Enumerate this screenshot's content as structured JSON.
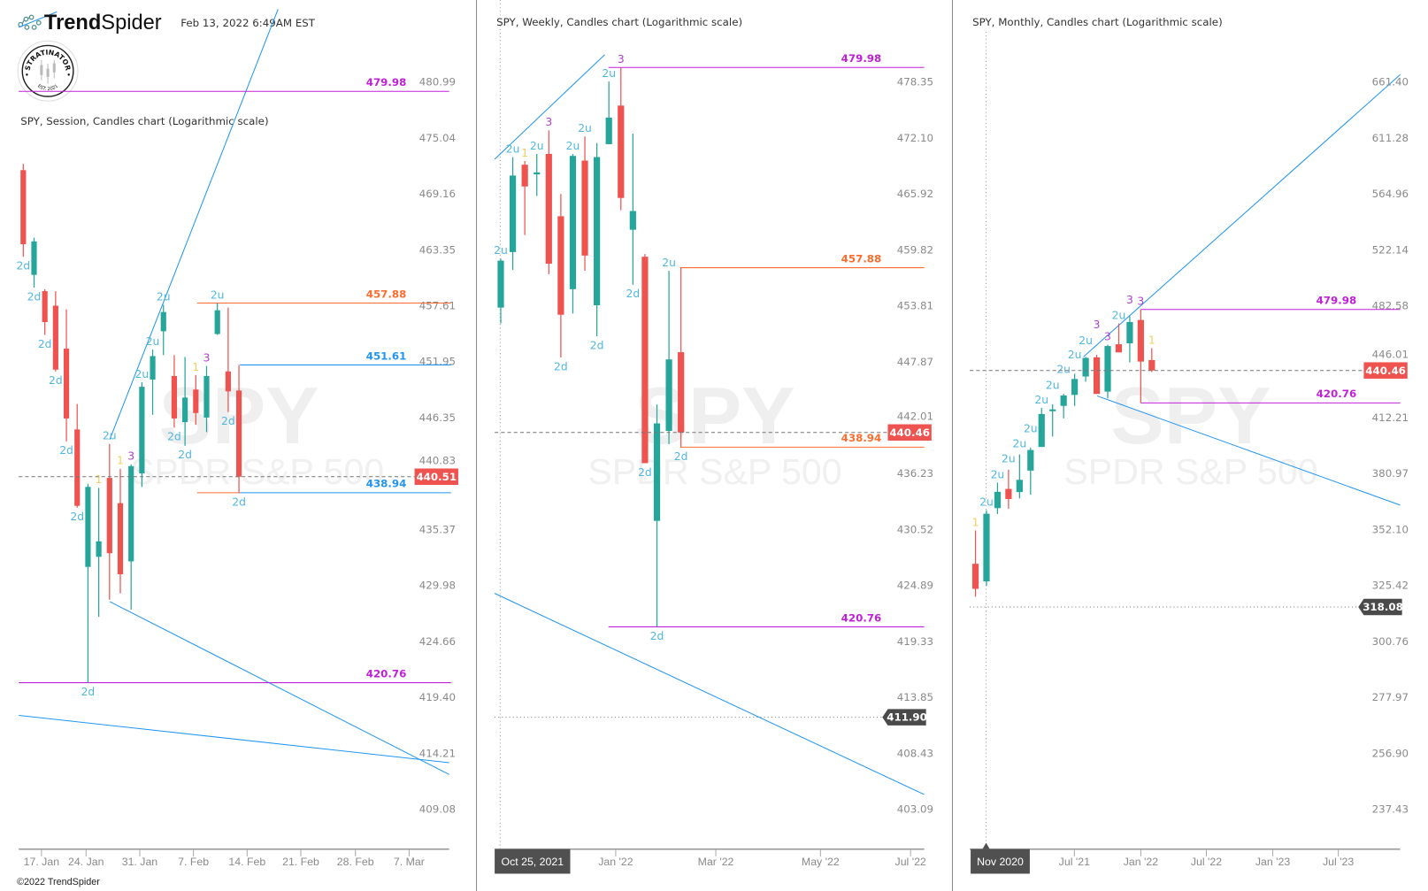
{
  "app": {
    "brand_bold": "Trend",
    "brand_light": "Spider",
    "timestamp": "Feb 13, 2022 6:49AM EST",
    "copyright": "©2022 TrendSpider",
    "badge": {
      "top": "STRATINATOR",
      "bottom": "EST. 2021"
    }
  },
  "colors": {
    "up": "#26a69a",
    "down": "#ef5350",
    "label_2": "#4fb8e0",
    "label_1": "#f2d15c",
    "label_3": "#b040d0",
    "magenta": "#c020d8",
    "orange": "#ff6d2e",
    "blue": "#2196f3",
    "trendline": "#2196f3",
    "price_tag": "#ef5350",
    "crosshair_tag": "#4a4a4a"
  },
  "watermark": {
    "symbol": "SPY",
    "name": "SPDR S&P 500"
  },
  "panels": [
    {
      "title": "SPY, Session, Candles chart (Logarithmic scale)",
      "yticks": [
        "480.99",
        "475.04",
        "469.16",
        "463.35",
        "457.61",
        "451.95",
        "446.35",
        "440.83",
        "435.37",
        "429.98",
        "424.66",
        "419.40",
        "414.21",
        "409.08"
      ],
      "candles": [
        {
          "o": 471.63,
          "h": 472.29,
          "l": 462.61,
          "c": 463.92,
          "label": "2d"
        },
        {
          "o": 460.76,
          "h": 464.59,
          "l": 459.46,
          "c": 464.21,
          "label": "2d"
        },
        {
          "o": 459.09,
          "h": 459.28,
          "l": 454.64,
          "c": 455.94,
          "label": "2d"
        },
        {
          "o": 457.61,
          "h": 459.09,
          "l": 450.96,
          "c": 451.14,
          "label": "2d"
        },
        {
          "o": 453.25,
          "h": 457.24,
          "l": 443.99,
          "c": 446.26,
          "label": "2d"
        },
        {
          "o": 445.17,
          "h": 447.7,
          "l": 437.48,
          "c": 437.66,
          "label": "2d"
        },
        {
          "o": 431.75,
          "h": 439.8,
          "l": 420.76,
          "c": 439.51,
          "label": "2d"
        },
        {
          "o": 432.72,
          "h": 439.42,
          "l": 426.98,
          "c": 434.22,
          "label": "1"
        },
        {
          "o": 440.39,
          "h": 443.73,
          "l": 428.61,
          "c": 433.07,
          "label": "2u"
        },
        {
          "o": 437.92,
          "h": 441.28,
          "l": 429.21,
          "c": 431.04,
          "label": "1"
        },
        {
          "o": 432.28,
          "h": 441.73,
          "l": 427.66,
          "c": 441.55,
          "label": "3"
        },
        {
          "o": 440.83,
          "h": 449.87,
          "l": 439.51,
          "c": 449.42,
          "label": "2u"
        },
        {
          "o": 450.14,
          "h": 453.16,
          "l": 446.62,
          "c": 452.5,
          "label": "2u"
        },
        {
          "o": 455.01,
          "h": 457.7,
          "l": 452.6,
          "c": 456.96,
          "label": "2u"
        },
        {
          "o": 450.5,
          "h": 452.6,
          "l": 445.35,
          "c": 446.26,
          "label": "2d"
        },
        {
          "o": 445.9,
          "h": 452.41,
          "l": 443.55,
          "c": 448.34,
          "label": "2d"
        },
        {
          "o": 449.14,
          "h": 450.59,
          "l": 445.63,
          "c": 446.8,
          "label": "1"
        },
        {
          "o": 446.35,
          "h": 451.5,
          "l": 444.9,
          "c": 450.5,
          "label": "3"
        },
        {
          "o": 454.73,
          "h": 457.88,
          "l": 454.64,
          "c": 457.14,
          "label": "2u"
        },
        {
          "o": 450.96,
          "h": 457.42,
          "l": 446.89,
          "c": 448.96,
          "label": "2d"
        },
        {
          "o": 449.05,
          "h": 451.61,
          "l": 438.94,
          "c": 440.51,
          "label": "2d"
        }
      ],
      "levels": [
        {
          "value": 479.98,
          "label": "479.98",
          "color": "#c020d8"
        },
        {
          "value": 457.88,
          "label": "457.88",
          "color": "#ff6d2e"
        },
        {
          "value": 451.61,
          "label": "451.61",
          "color": "#2196f3"
        },
        {
          "value": 438.94,
          "label": "438.94",
          "color": "#2196f3",
          "origin_color": "#ff6d2e"
        },
        {
          "value": 420.76,
          "label": "420.76",
          "color": "#c020d8"
        }
      ],
      "last_price": {
        "value": 440.51,
        "label": "440.51"
      },
      "crosshair": null,
      "xaxis": {
        "highlight": null,
        "labels": [
          "17. Jan",
          "24. Jan",
          "31. Jan",
          "7. Feb",
          "14. Feb",
          "21. Feb",
          "28. Feb",
          "7. Mar"
        ]
      }
    },
    {
      "title": "SPY, Weekly, Candles chart (Logarithmic scale)",
      "yticks": [
        "478.35",
        "472.10",
        "465.92",
        "459.82",
        "453.81",
        "447.87",
        "442.01",
        "436.23",
        "430.52",
        "424.89",
        "419.33",
        "413.85",
        "408.43",
        "403.09"
      ],
      "candles": [
        {
          "o": 453.6,
          "h": 458.85,
          "l": 451.9,
          "c": 458.64,
          "label": "2u"
        },
        {
          "o": 459.57,
          "h": 469.96,
          "l": 457.63,
          "c": 467.92,
          "label": "2u"
        },
        {
          "o": 469.11,
          "h": 469.53,
          "l": 461.42,
          "c": 466.72,
          "label": "1"
        },
        {
          "o": 468.05,
          "h": 470.31,
          "l": 465.68,
          "c": 468.27,
          "label": "2u"
        },
        {
          "o": 470.31,
          "h": 472.92,
          "l": 457.18,
          "c": 458.31,
          "label": "3"
        },
        {
          "o": 463.46,
          "h": 465.89,
          "l": 448.31,
          "c": 452.84,
          "label": "2d"
        },
        {
          "o": 455.57,
          "h": 470.31,
          "l": 452.96,
          "c": 470.09,
          "label": "2u"
        },
        {
          "o": 469.57,
          "h": 472.25,
          "l": 457.55,
          "c": 459.19,
          "label": "2u"
        },
        {
          "o": 453.85,
          "h": 471.52,
          "l": 450.55,
          "c": 469.96,
          "label": "2d"
        },
        {
          "o": 471.39,
          "h": 478.39,
          "l": 471.39,
          "c": 474.35,
          "label": "2u"
        },
        {
          "o": 475.69,
          "h": 479.98,
          "l": 464.12,
          "c": 465.46,
          "label": "3"
        },
        {
          "o": 461.99,
          "h": 472.57,
          "l": 456.05,
          "c": 464.03,
          "label": "2d"
        },
        {
          "o": 459.06,
          "h": 459.35,
          "l": 437.29,
          "c": 437.29,
          "label": "2d"
        },
        {
          "o": 431.39,
          "h": 443.37,
          "l": 420.76,
          "c": 441.4,
          "label": "2d"
        },
        {
          "o": 440.62,
          "h": 457.54,
          "l": 439.26,
          "c": 448.1,
          "label": "2u"
        },
        {
          "o": 448.86,
          "h": 457.88,
          "l": 438.94,
          "c": 440.46,
          "label": "2d"
        }
      ],
      "levels": [
        {
          "value": 479.98,
          "label": "479.98",
          "color": "#c020d8"
        },
        {
          "value": 457.88,
          "label": "457.88",
          "color": "#ff6d2e"
        },
        {
          "value": 438.94,
          "label": "438.94",
          "color": "#ff6d2e"
        },
        {
          "value": 420.76,
          "label": "420.76",
          "color": "#c020d8"
        }
      ],
      "last_price": {
        "value": 440.46,
        "label": "440.46"
      },
      "crosshair": {
        "value": 411.9,
        "label": "411.90"
      },
      "xaxis": {
        "highlight": "Oct 25, 2021",
        "labels": [
          "Jan '22",
          "Mar '22",
          "May '22",
          "Jul '22"
        ]
      }
    },
    {
      "title": "SPY, Monthly, Candles chart (Logarithmic scale)",
      "yticks": [
        "661.40",
        "611.28",
        "564.96",
        "522.14",
        "482.58",
        "446.01",
        "412.21",
        "380.97",
        "352.10",
        "325.42",
        "300.76",
        "277.97",
        "256.90",
        "237.43"
      ],
      "candles": [
        {
          "o": 335.44,
          "h": 351.58,
          "l": 320.25,
          "c": 323.83,
          "label": "1"
        },
        {
          "o": 327.26,
          "h": 361.78,
          "l": 325.14,
          "c": 359.97,
          "label": "2u"
        },
        {
          "o": 362.81,
          "h": 376.08,
          "l": 359.83,
          "c": 371.24,
          "label": "2u"
        },
        {
          "o": 372.77,
          "h": 383.02,
          "l": 362.53,
          "c": 367.51,
          "label": "2u"
        },
        {
          "o": 371.1,
          "h": 391.32,
          "l": 367.79,
          "c": 377.57,
          "label": "2u"
        },
        {
          "o": 382.51,
          "h": 395.11,
          "l": 369.75,
          "c": 393.78,
          "label": "2u"
        },
        {
          "o": 395.47,
          "h": 417.82,
          "l": 395.47,
          "c": 414.28,
          "label": "2u"
        },
        {
          "o": 416.05,
          "h": 419.95,
          "l": 401.25,
          "c": 416.95,
          "label": "2u"
        },
        {
          "o": 419.02,
          "h": 426.14,
          "l": 411.7,
          "c": 425.24,
          "label": "2u"
        },
        {
          "o": 425.57,
          "h": 438.38,
          "l": 419.02,
          "c": 435.21,
          "label": "2u"
        },
        {
          "o": 436.74,
          "h": 448.89,
          "l": 433.53,
          "c": 448.35,
          "label": "2u"
        },
        {
          "o": 448.71,
          "h": 450.27,
          "l": 426.14,
          "c": 426.14,
          "label": "3"
        },
        {
          "o": 427.56,
          "h": 456.68,
          "l": 423.44,
          "c": 455.9,
          "label": "3"
        },
        {
          "o": 457.04,
          "h": 470.65,
          "l": 451.82,
          "c": 451.82,
          "label": "2u"
        },
        {
          "o": 457.64,
          "h": 475.45,
          "l": 445.46,
          "c": 471.61,
          "label": "3"
        },
        {
          "o": 472.93,
          "h": 479.98,
          "l": 420.76,
          "c": 446.01,
          "label": "3"
        },
        {
          "o": 446.97,
          "h": 454.53,
          "l": 439.5,
          "c": 440.46,
          "label": "1"
        }
      ],
      "levels": [
        {
          "value": 479.98,
          "label": "479.98",
          "color": "#c020d8"
        },
        {
          "value": 420.76,
          "label": "420.76",
          "color": "#c020d8"
        }
      ],
      "last_price": {
        "value": 440.46,
        "label": "440.46"
      },
      "crosshair": {
        "value": 318.08,
        "label": "318.08"
      },
      "xaxis": {
        "highlight": "Nov 2020",
        "labels": [
          "Jul '21",
          "Jan '22",
          "Jul '22",
          "Jan '23",
          "Jul '23"
        ]
      }
    }
  ]
}
